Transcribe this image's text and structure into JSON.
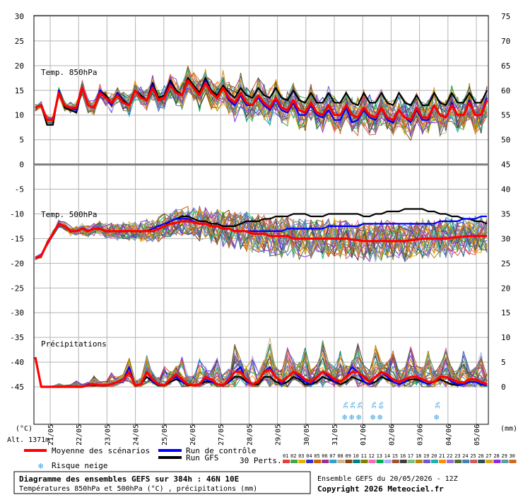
{
  "chart_data": {
    "type": "line",
    "title": "Diagramme des ensembles GEFS sur 384h : 46N 10E",
    "subtitle": "Températures 850hPa et 500hPa (°C) , précipitations (mm)",
    "run_label": "Ensemble GEFS du 20/05/2026 - 12Z",
    "copyright": "Copyright 2026 Meteociel.fr",
    "altitude_label": "Alt. 1371m",
    "left_unit": "(°C)",
    "right_unit": "(mm)",
    "panel_labels": {
      "t850": "Temp. 850hPa",
      "t500": "Temp. 500hPa",
      "precip": "Précipitations"
    },
    "x_ticks": [
      "21/05",
      "22/05",
      "23/05",
      "24/05",
      "25/05",
      "26/05",
      "27/05",
      "28/05",
      "29/05",
      "30/05",
      "31/05",
      "01/06",
      "02/06",
      "03/06",
      "04/06",
      "05/06"
    ],
    "left_y_ticks": [
      30,
      25,
      20,
      15,
      10,
      5,
      0,
      -5,
      -10,
      -15,
      -20,
      -25,
      -30,
      -35,
      -40,
      -45
    ],
    "right_y_ticks": [
      75,
      70,
      65,
      60,
      55,
      50,
      45,
      40,
      35,
      30,
      25,
      20,
      15,
      10,
      5,
      0
    ],
    "ylim_left": [
      -45,
      30
    ],
    "grid": true,
    "legend": {
      "mean": "Moyenne des scénarios",
      "control": "Run de contrôle",
      "gfs": "Run GFS",
      "snow": "Risque neige",
      "perts_label": "30 Perts.",
      "perts": [
        "01",
        "02",
        "03",
        "04",
        "05",
        "06",
        "07",
        "08",
        "09",
        "10",
        "11",
        "12",
        "13",
        "14",
        "15",
        "16",
        "17",
        "18",
        "19",
        "20",
        "21",
        "22",
        "23",
        "24",
        "25",
        "26",
        "27",
        "28",
        "29",
        "30"
      ],
      "colors": {
        "mean": "#ff0000",
        "control": "#0000ff",
        "gfs": "#000000"
      }
    },
    "pert_colors": [
      "#e63c3c",
      "#46a546",
      "#e6b400",
      "#3232c8",
      "#c86400",
      "#963296",
      "#32a0c8",
      "#d2b48c",
      "#8b4513",
      "#008080",
      "#808000",
      "#ff69b4",
      "#00b050",
      "#b0b0ff",
      "#a0522d",
      "#404040",
      "#7cc27c",
      "#b8860b",
      "#6a5acd",
      "#20b2aa",
      "#ff8c00",
      "#9370db",
      "#556b2f",
      "#4682b4",
      "#cd5c5c",
      "#2f4f4f",
      "#daa520",
      "#8a2be2",
      "#5f9ea0",
      "#d2691e"
    ],
    "snow_risk": [
      {
        "date": "31/05",
        "percent": "3%"
      },
      {
        "date": "01/06",
        "percent": "3%"
      },
      {
        "date": "01/06",
        "percent": "3%"
      },
      {
        "date": "02/06",
        "percent": "3%"
      },
      {
        "date": "02/06",
        "percent": "6%"
      },
      {
        "date": "04/06",
        "percent": "3%"
      }
    ],
    "series": [
      {
        "name": "Moyenne des scénarios",
        "t850": [
          11.5,
          12,
          9,
          9,
          14.5,
          12,
          11.5,
          11.5,
          15.5,
          12,
          11.5,
          14.5,
          13.5,
          12.5,
          14,
          12.5,
          12,
          15,
          13.5,
          13,
          15.5,
          13,
          13.5,
          16,
          14.5,
          14,
          17,
          15.5,
          14,
          16.5,
          14.5,
          13.5,
          15.5,
          13.5,
          12.5,
          14.5,
          12.5,
          12,
          14,
          12.5,
          11.5,
          13.5,
          11.5,
          11,
          13,
          11,
          10.5,
          12.5,
          10.5,
          10,
          12,
          10,
          10,
          12,
          10,
          9.5,
          11.5,
          10,
          9.5,
          11.5,
          9.5,
          9,
          11,
          9.5,
          9,
          11.5,
          9.5,
          9.5,
          12,
          10,
          9.5,
          12,
          10,
          10,
          12.5,
          10,
          10,
          13
        ],
        "t500": [
          -19,
          -18.5,
          -16,
          -14,
          -12,
          -12.5,
          -13.5,
          -13.5,
          -13,
          -13.5,
          -13,
          -13,
          -13.5,
          -13.5,
          -13.5,
          -13.5,
          -13.5,
          -13.5,
          -13.5,
          -13.5,
          -13.5,
          -13,
          -12.5,
          -12,
          -11.8,
          -11.5,
          -11.5,
          -11.7,
          -12,
          -12,
          -12.5,
          -12.5,
          -13,
          -13,
          -13.5,
          -13.5,
          -13.5,
          -14,
          -14,
          -14,
          -14.5,
          -14.5,
          -14.5,
          -14.5,
          -15,
          -15,
          -15,
          -15,
          -15,
          -15,
          -15,
          -15,
          -15,
          -15,
          -15.2,
          -15.3,
          -15.5,
          -15.5,
          -15.5,
          -15.5,
          -15.5,
          -15.5,
          -15.5,
          -15.5,
          -15.3,
          -15.2,
          -15,
          -15,
          -15,
          -15,
          -15,
          -14.8,
          -14.7,
          -14.6,
          -14.5,
          -14.5,
          -14.5,
          -14.5
        ],
        "precip": [
          6,
          0,
          0,
          0,
          0,
          0,
          0,
          0,
          0,
          0.3,
          0.5,
          0.3,
          0.3,
          0.5,
          1,
          1.5,
          3,
          0.3,
          0.5,
          3,
          1.5,
          0.5,
          0.3,
          1.5,
          2.5,
          1.5,
          0.5,
          0.3,
          0.5,
          2,
          1.5,
          0.5,
          0.3,
          1.5,
          3,
          3,
          1.5,
          0.5,
          1,
          3,
          3.5,
          2,
          1,
          2,
          3,
          2.5,
          1.5,
          1,
          2,
          3,
          2.5,
          1.5,
          1,
          2,
          3,
          3,
          2,
          1,
          2,
          3,
          2.5,
          1.5,
          1,
          1.5,
          2,
          2,
          1.5,
          1,
          1,
          2,
          2,
          1.5,
          1,
          0.8,
          1.5,
          1.5,
          1,
          0.5
        ]
      },
      {
        "name": "Run de contrôle",
        "t850": [
          11.5,
          12,
          9,
          9,
          15,
          12,
          11.5,
          11,
          15.5,
          12,
          11.5,
          15,
          13.5,
          12,
          14.5,
          12.5,
          12,
          15,
          13.5,
          13,
          16,
          13,
          13.5,
          16.5,
          14.5,
          14,
          17,
          15.5,
          14,
          17,
          14.5,
          13.5,
          15.5,
          13,
          12,
          14,
          12,
          12,
          13.5,
          12,
          11,
          13,
          11,
          10.5,
          12.5,
          10,
          10,
          12,
          10,
          9.5,
          11,
          9,
          9,
          11.5,
          8.5,
          9,
          11,
          9.5,
          9,
          11.5,
          9,
          8.5,
          11,
          9.5,
          8.5,
          11,
          9,
          9,
          12,
          10,
          9.5,
          12.5,
          10,
          10,
          13,
          10,
          10,
          13.5
        ],
        "t500": [
          -19,
          -18.5,
          -16,
          -14,
          -12,
          -12.5,
          -13.5,
          -13.5,
          -13,
          -13.5,
          -13,
          -13,
          -13.5,
          -13.5,
          -13.5,
          -13.5,
          -13.5,
          -13.5,
          -13.5,
          -13.5,
          -13,
          -12.5,
          -12,
          -11.5,
          -11,
          -11,
          -11,
          -11.5,
          -12,
          -12,
          -12.5,
          -12.5,
          -13,
          -13,
          -13.5,
          -13.5,
          -13.5,
          -13.5,
          -13.5,
          -13.5,
          -13.5,
          -13.5,
          -13.5,
          -13,
          -13,
          -13,
          -13,
          -13,
          -13,
          -13,
          -12.5,
          -12.5,
          -12.5,
          -12.5,
          -12.5,
          -12.5,
          -12,
          -12,
          -12,
          -12,
          -12,
          -12,
          -12,
          -12,
          -12,
          -12,
          -12,
          -12,
          -12,
          -11.5,
          -11.5,
          -11.5,
          -11.5,
          -11,
          -11,
          -11,
          -10.5,
          -10.5
        ],
        "precip": [
          6,
          0,
          0,
          0,
          0,
          0,
          0,
          0,
          0,
          0.5,
          0.5,
          0.3,
          0.3,
          0.5,
          1,
          1.5,
          4,
          0.3,
          0.5,
          3,
          1,
          0.5,
          0.3,
          1.5,
          2,
          1,
          0.5,
          0.3,
          0.5,
          1.5,
          1,
          0.5,
          0.3,
          1,
          3,
          4,
          1,
          0.5,
          1,
          3,
          4,
          2,
          0.5,
          2,
          3,
          2,
          1,
          0.5,
          2,
          3,
          2,
          1,
          1,
          2,
          4,
          3,
          1,
          0.5,
          2,
          3,
          2,
          1,
          0.5,
          1,
          2,
          2,
          1,
          0.5,
          1,
          2,
          2,
          1,
          0.5,
          0.5,
          1,
          1,
          0.5,
          0.3
        ]
      },
      {
        "name": "Run GFS",
        "t850": [
          11.5,
          12,
          8,
          8,
          15,
          11.5,
          11,
          10.5,
          15.5,
          12,
          11.5,
          15,
          14,
          12.5,
          14.5,
          13,
          12,
          15,
          14,
          13,
          16.5,
          13.5,
          14,
          17,
          15,
          14,
          17.5,
          16,
          14.5,
          17.5,
          15,
          14,
          16,
          14.5,
          13.5,
          15.5,
          14,
          13.5,
          15.5,
          14,
          13.5,
          15.5,
          13.5,
          13,
          15,
          13,
          12.5,
          14.5,
          12.5,
          12.5,
          14.5,
          12.5,
          12.5,
          14.5,
          12.5,
          12,
          14.5,
          12.5,
          12.5,
          14.5,
          12.5,
          12,
          14.5,
          12.5,
          12,
          14,
          12,
          12,
          14.5,
          12.5,
          12,
          14.5,
          12.5,
          12.5,
          14.5,
          12.5,
          12.5,
          15
        ],
        "t500": [
          -19,
          -18.5,
          -16,
          -14,
          -12,
          -12.5,
          -13.5,
          -13.5,
          -13,
          -13.5,
          -13,
          -13,
          -13.5,
          -13.5,
          -13.5,
          -13.5,
          -13.5,
          -13.5,
          -13.5,
          -13.5,
          -13.5,
          -13,
          -12.5,
          -11.5,
          -11,
          -10.5,
          -10.5,
          -11,
          -11.5,
          -11.5,
          -12,
          -12,
          -12.5,
          -12.5,
          -12.5,
          -12,
          -11.5,
          -11.5,
          -11.5,
          -11,
          -11,
          -10.5,
          -10.5,
          -10.5,
          -10,
          -10,
          -10,
          -10.5,
          -10.5,
          -10.5,
          -10,
          -10,
          -10,
          -10,
          -10,
          -10,
          -10.5,
          -10.5,
          -10,
          -10,
          -9.5,
          -9.5,
          -9.5,
          -9,
          -9,
          -9,
          -9,
          -9.5,
          -9.5,
          -10,
          -10,
          -10.5,
          -10.5,
          -11,
          -11,
          -11.5,
          -11.5,
          -12
        ],
        "precip": [
          6,
          0,
          0,
          0,
          0,
          0,
          0,
          0,
          0,
          0.3,
          0.3,
          0.3,
          0.3,
          0.5,
          1,
          1.5,
          3,
          0.3,
          0.5,
          2,
          1,
          0.3,
          0.3,
          1,
          1.5,
          1,
          0.3,
          0.3,
          0.5,
          1,
          1,
          0.5,
          0.3,
          1,
          2,
          2,
          1,
          0.5,
          0.5,
          2,
          2,
          1,
          0.5,
          1,
          2,
          1.5,
          0.5,
          0.5,
          1,
          2,
          1.5,
          1,
          0.5,
          1,
          2,
          1.5,
          1,
          0.5,
          1,
          2,
          1.5,
          1,
          0.5,
          1,
          1.5,
          1.5,
          1,
          0.5,
          1,
          1.5,
          1,
          0.5,
          0.3,
          0.5,
          1,
          1,
          0.5,
          0.3
        ]
      }
    ]
  }
}
